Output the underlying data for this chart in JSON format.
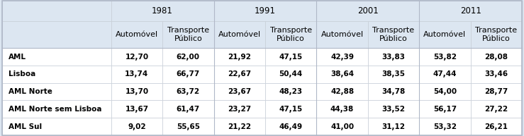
{
  "years": [
    "1981",
    "1991",
    "2001",
    "2011"
  ],
  "col_headers": [
    "Automóvel",
    "Transporte\nPúblico"
  ],
  "row_labels": [
    "AML",
    "Lisboa",
    "AML Norte",
    "AML Norte sem Lisboa",
    "AML Sul"
  ],
  "data": [
    [
      12.7,
      62.0,
      21.92,
      47.15,
      42.39,
      33.83,
      53.82,
      28.08
    ],
    [
      13.74,
      66.77,
      22.67,
      50.44,
      38.64,
      38.35,
      47.44,
      33.46
    ],
    [
      13.7,
      63.72,
      23.67,
      48.23,
      42.88,
      34.78,
      54.0,
      28.77
    ],
    [
      13.67,
      61.47,
      23.27,
      47.15,
      44.38,
      33.52,
      56.17,
      27.22
    ],
    [
      9.02,
      55.65,
      21.22,
      46.49,
      41.0,
      31.12,
      53.32,
      26.21
    ]
  ],
  "header_bg": "#dce6f1",
  "cell_bg": "#ffffff",
  "outer_border": "#b0b8c8",
  "divider_color": "#c8cfd8",
  "font_size": 7.5,
  "header_font_size": 8.0,
  "year_font_size": 8.5,
  "figsize": [
    7.39,
    1.93
  ],
  "dpi": 100
}
